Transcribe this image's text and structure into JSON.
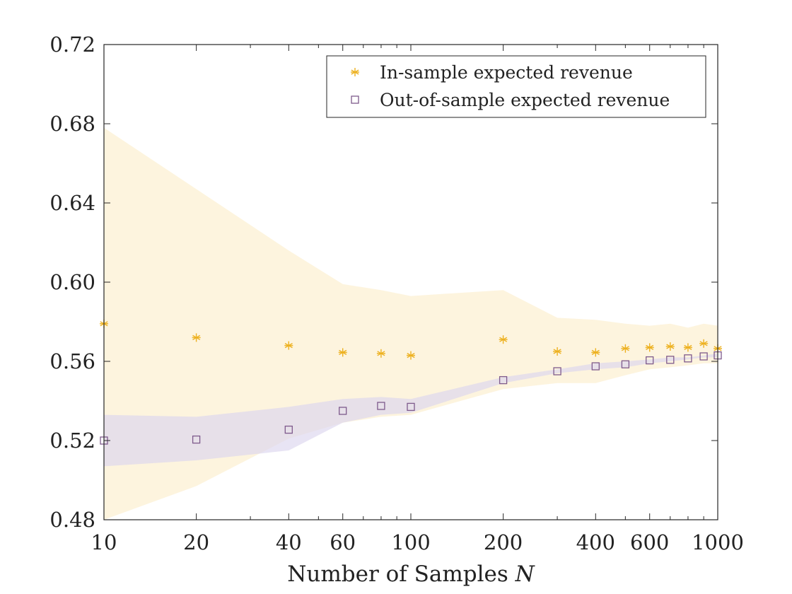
{
  "chart_data": {
    "type": "scatter",
    "title": "",
    "xlabel": "Number of Samples",
    "xlabel_symbol": "N",
    "ylabel": "",
    "x_scale": "log",
    "xlim": [
      10,
      1000
    ],
    "ylim": [
      0.48,
      0.72
    ],
    "x_ticks": [
      10,
      20,
      40,
      60,
      100,
      200,
      400,
      600,
      1000
    ],
    "x_tick_labels": [
      "10",
      "20",
      "40",
      "60",
      "100",
      "200",
      "400",
      "600",
      "1000"
    ],
    "y_ticks": [
      0.48,
      0.52,
      0.56,
      0.6,
      0.64,
      0.68,
      0.72
    ],
    "y_tick_labels": [
      "0.48",
      "0.52",
      "0.56",
      "0.60",
      "0.64",
      "0.68",
      "0.72"
    ],
    "grid": false,
    "legend_position": "top-right",
    "x": [
      10,
      20,
      40,
      60,
      80,
      100,
      200,
      300,
      400,
      500,
      600,
      700,
      800,
      900,
      1000
    ],
    "series": [
      {
        "name": "In-sample expected revenue",
        "marker": "asterisk",
        "color": "#EDB120",
        "band_color": "#FDF3DA",
        "values": [
          0.579,
          0.572,
          0.568,
          0.5645,
          0.564,
          0.563,
          0.571,
          0.565,
          0.5645,
          0.5665,
          0.567,
          0.5675,
          0.567,
          0.569,
          0.5665
        ],
        "band_upper": [
          0.678,
          0.647,
          0.616,
          0.599,
          0.596,
          0.593,
          0.596,
          0.582,
          0.581,
          0.579,
          0.578,
          0.579,
          0.577,
          0.579,
          0.578
        ],
        "band_lower": [
          0.48,
          0.497,
          0.521,
          0.529,
          0.532,
          0.533,
          0.546,
          0.549,
          0.549,
          0.553,
          0.556,
          0.557,
          0.558,
          0.559,
          0.559
        ]
      },
      {
        "name": "Out-of-sample expected revenue",
        "marker": "square",
        "color": "#7E5A8C",
        "band_color": "#DCD6EE",
        "values": [
          0.52,
          0.5205,
          0.5255,
          0.535,
          0.5375,
          0.537,
          0.5505,
          0.555,
          0.5575,
          0.5585,
          0.5605,
          0.5608,
          0.5615,
          0.5625,
          0.563
        ],
        "band_upper": [
          0.533,
          0.532,
          0.537,
          0.541,
          0.542,
          0.541,
          0.552,
          0.556,
          0.559,
          0.56,
          0.561,
          0.562,
          0.562,
          0.563,
          0.564
        ],
        "band_lower": [
          0.507,
          0.51,
          0.515,
          0.529,
          0.533,
          0.534,
          0.549,
          0.554,
          0.556,
          0.557,
          0.559,
          0.56,
          0.561,
          0.562,
          0.562
        ]
      }
    ]
  }
}
